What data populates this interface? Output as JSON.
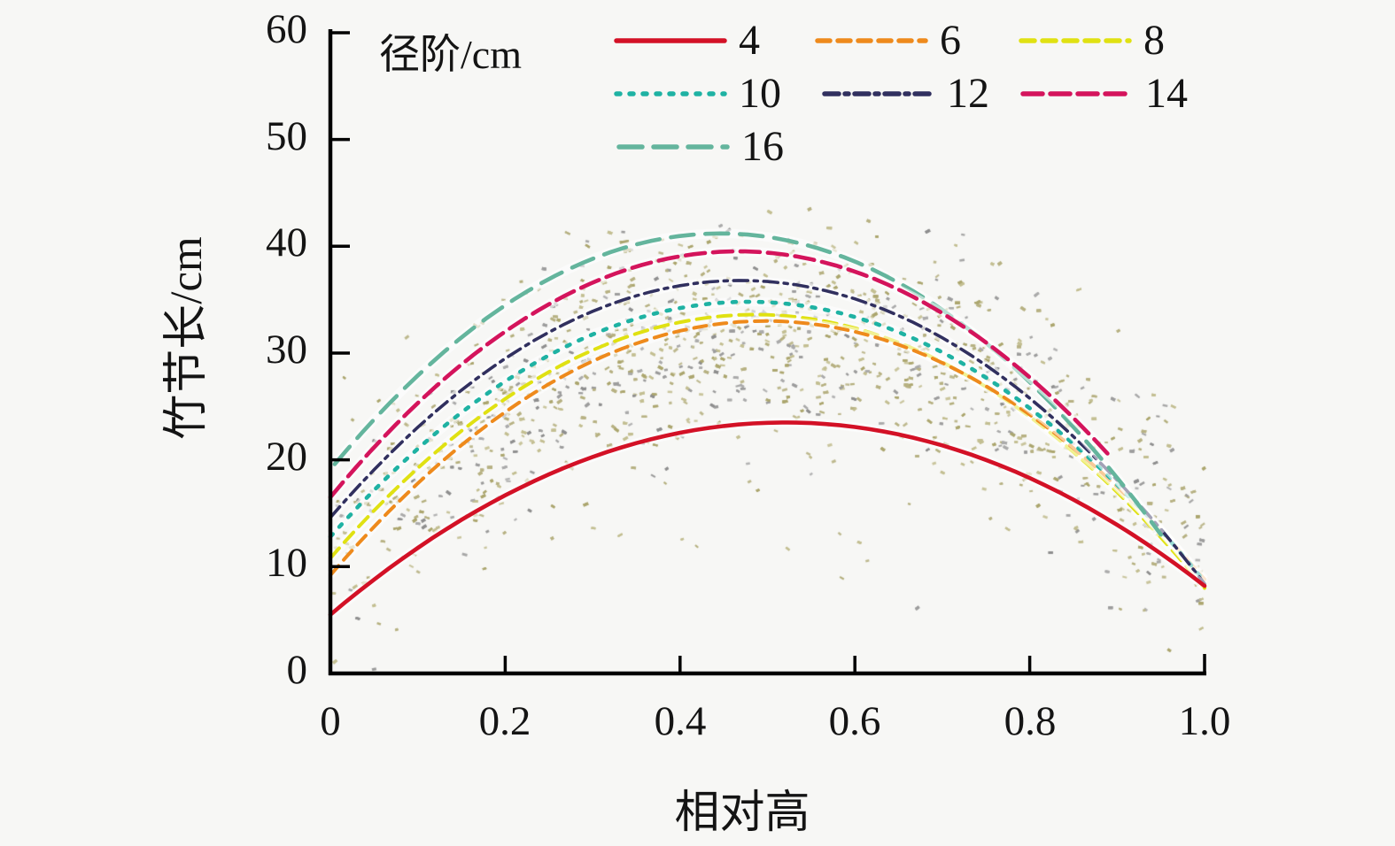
{
  "figure": {
    "background": "#f7f7f5",
    "legend": {
      "title": "径阶/cm",
      "items": [
        "4",
        "6",
        "8",
        "10",
        "12",
        "14",
        "16"
      ]
    },
    "axes": {
      "x": {
        "label": "相对高",
        "ticks": [
          "0",
          "0.2",
          "0.4",
          "0.6",
          "0.8",
          "1.0"
        ],
        "range": [
          0,
          1
        ]
      },
      "y": {
        "label": "竹节长/cm",
        "ticks": [
          "0",
          "10",
          "20",
          "30",
          "40",
          "50",
          "60"
        ],
        "range": [
          0,
          60
        ]
      }
    }
  },
  "chart_data": {
    "type": "scatter",
    "title": "",
    "xlabel": "相对高",
    "ylabel": "竹节长/cm",
    "xlim": [
      0,
      1
    ],
    "ylim": [
      0,
      60
    ],
    "legend_title": "径阶/cm",
    "grid": false,
    "scatter": {
      "description": "dense cloud of bamboo internode-length observations forming an arched band, peak ≈ 44 cm near relative height 0.45, tapering to ≈ 2-22 cm at both ends",
      "point_colors": [
        "#b7b183",
        "#aca66f",
        "#c3bf92",
        "#9d9d9d",
        "#8f8f8f",
        "#ababab"
      ],
      "khaki_fraction": 0.7,
      "approx_count": 3900,
      "band_center_anchors": [
        [
          0,
          11
        ],
        [
          0.47,
          32.5
        ],
        [
          1,
          11.5
        ]
      ],
      "band_sd_cm": 4.8
    },
    "series": [
      {
        "name": "4",
        "color": "#d31126",
        "dash": [],
        "width": 4.6,
        "anchors": [
          [
            0,
            5.5
          ],
          [
            0.52,
            23.5
          ],
          [
            1,
            8.2
          ]
        ]
      },
      {
        "name": "6",
        "color": "#ee8a1c",
        "dash": [
          14,
          9
        ],
        "width": 4.0,
        "anchors": [
          [
            0,
            9.2
          ],
          [
            0.49,
            33.0
          ],
          [
            1,
            8.8
          ]
        ]
      },
      {
        "name": "8",
        "color": "#e0e112",
        "dash": [
          15,
          9
        ],
        "width": 4.0,
        "anchors": [
          [
            0,
            10.8
          ],
          [
            0.48,
            33.6
          ],
          [
            1,
            8.0
          ]
        ]
      },
      {
        "name": "10",
        "color": "#1fb2a3",
        "dash": [
          4,
          11
        ],
        "width": 4.6,
        "anchors": [
          [
            0,
            12.8
          ],
          [
            0.47,
            34.8
          ],
          [
            1,
            8.6
          ]
        ]
      },
      {
        "name": "12",
        "color": "#31305f",
        "dash": [
          16,
          7,
          4,
          7
        ],
        "width": 3.6,
        "anchors": [
          [
            0,
            14.6
          ],
          [
            0.47,
            36.8
          ],
          [
            1,
            8.4
          ]
        ]
      },
      {
        "name": "14",
        "color": "#d4145c",
        "dash": [
          22,
          9
        ],
        "width": 4.6,
        "anchors": [
          [
            0,
            16.5
          ],
          [
            0.45,
            39.5
          ],
          [
            0.89,
            20.5
          ]
        ]
      },
      {
        "name": "16",
        "color": "#64b59d",
        "dash": [
          26,
          13
        ],
        "width": 4.6,
        "anchors": [
          [
            0.005,
            19.6
          ],
          [
            0.45,
            41.2
          ],
          [
            0.95,
            13.0
          ]
        ]
      }
    ]
  }
}
